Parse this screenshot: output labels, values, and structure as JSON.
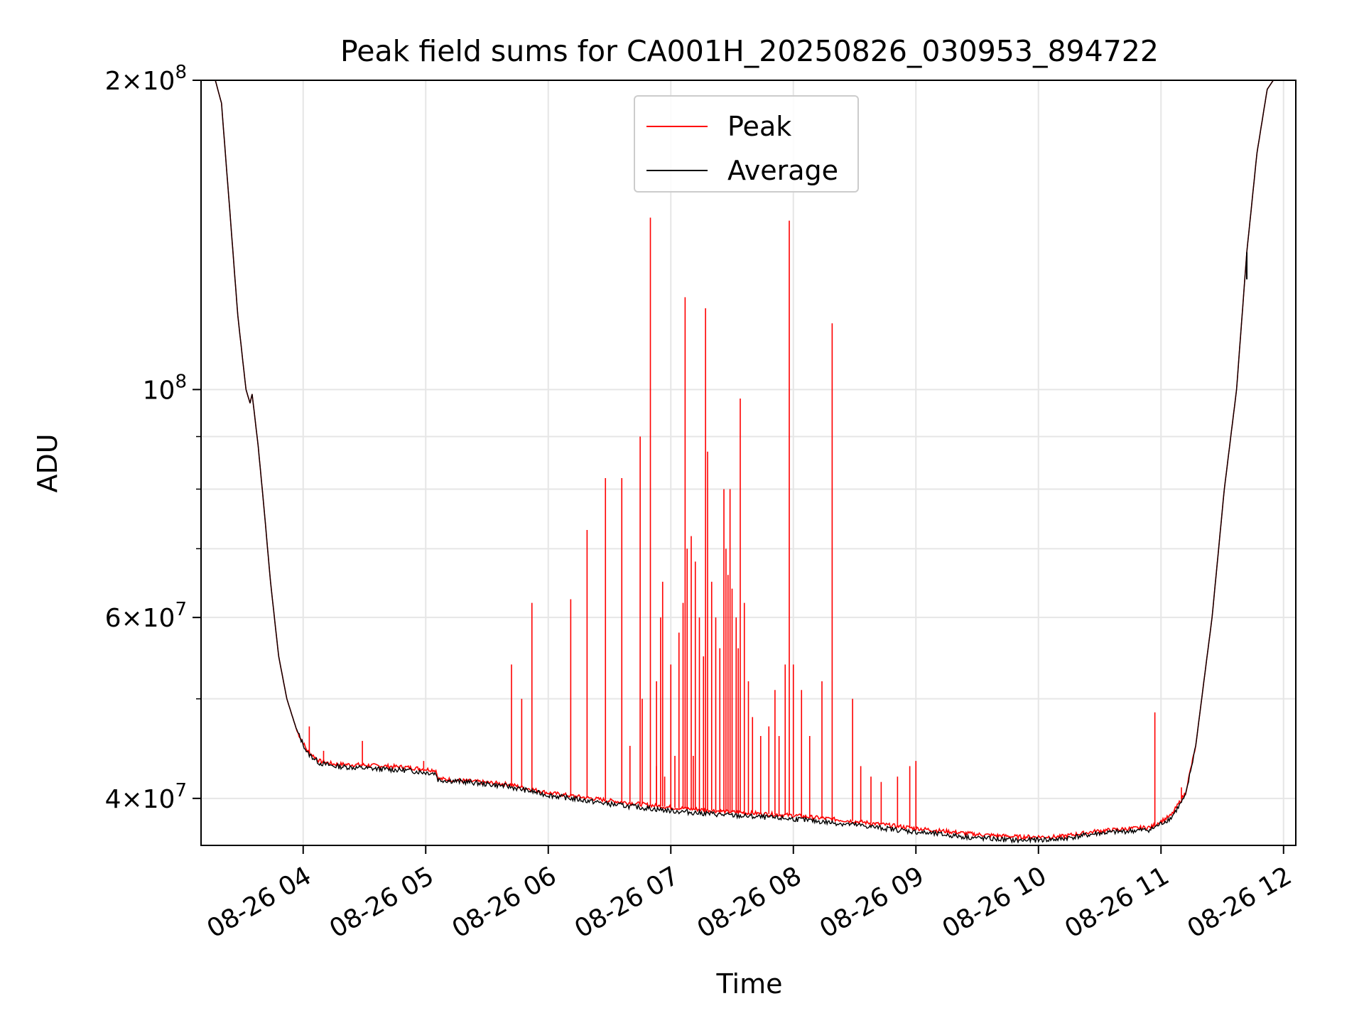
{
  "chart_data": {
    "type": "line",
    "title": "Peak field sums for CA001H_20250826_030953_894722",
    "xlabel": "Time",
    "ylabel": "ADU",
    "yscale": "log",
    "ylim": [
      36000000,
      200000000
    ],
    "xlim": [
      "2025-08-26 03:10",
      "2025-08-26 12:06"
    ],
    "grid": true,
    "legend_position": "upper center",
    "x_ticks": [
      "08-26 04",
      "08-26 05",
      "08-26 06",
      "08-26 07",
      "08-26 08",
      "08-26 09",
      "08-26 10",
      "08-26 11",
      "08-26 12"
    ],
    "y_ticks": [
      {
        "value": 40000000,
        "mantissa": "4",
        "exponent": "7"
      },
      {
        "value": 60000000,
        "mantissa": "6",
        "exponent": "7"
      },
      {
        "value": 100000000,
        "mantissa": "",
        "exponent": "8"
      },
      {
        "value": 200000000,
        "mantissa": "2",
        "exponent": "8"
      }
    ],
    "series": [
      {
        "name": "Peak",
        "color": "#ff0000",
        "points": [
          [
            "03:10",
            200000000
          ],
          [
            "03:17",
            200000000
          ],
          [
            "03:20",
            190000000
          ],
          [
            "03:24",
            150000000
          ],
          [
            "03:28",
            118000000
          ],
          [
            "03:32",
            100000000
          ],
          [
            "03:34",
            97000000
          ],
          [
            "03:35",
            99000000
          ],
          [
            "03:38",
            88000000
          ],
          [
            "03:41",
            76000000
          ],
          [
            "03:44",
            65000000
          ],
          [
            "03:48",
            55000000
          ],
          [
            "03:52",
            50000000
          ],
          [
            "03:57",
            46500000
          ],
          [
            "04:02",
            44500000
          ],
          [
            "04:08",
            43500000
          ],
          [
            "04:15",
            43200000
          ],
          [
            "04:30",
            43100000
          ],
          [
            "04:50",
            42900000
          ],
          [
            "05:05",
            42600000
          ],
          [
            "05:06",
            41800000
          ],
          [
            "05:20",
            41600000
          ],
          [
            "05:40",
            41300000
          ],
          [
            "06:00",
            40500000
          ],
          [
            "06:30",
            39800000
          ],
          [
            "07:00",
            39200000
          ],
          [
            "07:30",
            38800000
          ],
          [
            "08:00",
            38500000
          ],
          [
            "08:30",
            38000000
          ],
          [
            "09:00",
            37400000
          ],
          [
            "09:30",
            36900000
          ],
          [
            "09:50",
            36700000
          ],
          [
            "10:10",
            36700000
          ],
          [
            "10:30",
            37200000
          ],
          [
            "10:55",
            37500000
          ],
          [
            "11:05",
            38500000
          ],
          [
            "11:12",
            40500000
          ],
          [
            "11:17",
            45000000
          ],
          [
            "11:21",
            52000000
          ],
          [
            "11:25",
            60000000
          ],
          [
            "11:31",
            80000000
          ],
          [
            "11:37",
            100000000
          ],
          [
            "11:42",
            136000000
          ],
          [
            "11:47",
            170000000
          ],
          [
            "11:52",
            196000000
          ],
          [
            "11:55",
            200000000
          ],
          [
            "12:06",
            200000000
          ]
        ],
        "spikes": [
          [
            "04:03",
            47000000
          ],
          [
            "04:10",
            44500000
          ],
          [
            "04:29",
            45500000
          ],
          [
            "04:59",
            43500000
          ],
          [
            "05:42",
            54000000
          ],
          [
            "05:47",
            50000000
          ],
          [
            "05:52",
            62000000
          ],
          [
            "06:11",
            62500000
          ],
          [
            "06:19",
            73000000
          ],
          [
            "06:28",
            82000000
          ],
          [
            "06:36",
            82000000
          ],
          [
            "06:45",
            90000000
          ],
          [
            "06:53",
            43000000
          ],
          [
            "06:57",
            42000000
          ],
          [
            "07:02",
            44000000
          ],
          [
            "07:11",
            44000000
          ],
          [
            "06:55",
            60000000
          ],
          [
            "06:53",
            52000000
          ],
          [
            "06:46",
            50000000
          ],
          [
            "06:40",
            45000000
          ],
          [
            "06:50",
            147000000
          ],
          [
            "06:56",
            65000000
          ],
          [
            "07:00",
            54000000
          ],
          [
            "07:04",
            58000000
          ],
          [
            "07:06",
            62000000
          ],
          [
            "07:07",
            123000000
          ],
          [
            "07:08",
            70000000
          ],
          [
            "07:10",
            72000000
          ],
          [
            "07:12",
            68000000
          ],
          [
            "07:14",
            60000000
          ],
          [
            "07:16",
            55000000
          ],
          [
            "07:17",
            120000000
          ],
          [
            "07:18",
            87000000
          ],
          [
            "07:20",
            65000000
          ],
          [
            "07:22",
            60000000
          ],
          [
            "07:24",
            56000000
          ],
          [
            "07:26",
            80000000
          ],
          [
            "07:27",
            70000000
          ],
          [
            "07:28",
            66000000
          ],
          [
            "07:29",
            80000000
          ],
          [
            "07:30",
            64000000
          ],
          [
            "07:32",
            60000000
          ],
          [
            "07:33",
            56000000
          ],
          [
            "07:34",
            98000000
          ],
          [
            "07:36",
            62000000
          ],
          [
            "07:38",
            52000000
          ],
          [
            "07:40",
            48000000
          ],
          [
            "07:44",
            46000000
          ],
          [
            "07:48",
            47000000
          ],
          [
            "07:51",
            51000000
          ],
          [
            "07:53",
            46000000
          ],
          [
            "07:56",
            54000000
          ],
          [
            "07:58",
            146000000
          ],
          [
            "08:00",
            54000000
          ],
          [
            "08:04",
            51000000
          ],
          [
            "08:08",
            46000000
          ],
          [
            "08:14",
            52000000
          ],
          [
            "08:19",
            116000000
          ],
          [
            "08:29",
            50000000
          ],
          [
            "08:33",
            43000000
          ],
          [
            "08:38",
            42000000
          ],
          [
            "08:43",
            41500000
          ],
          [
            "08:51",
            42000000
          ],
          [
            "08:57",
            43000000
          ],
          [
            "09:00",
            43500000
          ],
          [
            "10:57",
            48500000
          ],
          [
            "11:10",
            41000000
          ]
        ]
      },
      {
        "name": "Average",
        "color": "#000000",
        "points": [
          [
            "03:10",
            200000000
          ],
          [
            "03:17",
            200000000
          ],
          [
            "03:20",
            190000000
          ],
          [
            "03:24",
            150000000
          ],
          [
            "03:28",
            118000000
          ],
          [
            "03:32",
            100000000
          ],
          [
            "03:34",
            97000000
          ],
          [
            "03:35",
            99000000
          ],
          [
            "03:38",
            88000000
          ],
          [
            "03:41",
            76000000
          ],
          [
            "03:44",
            65000000
          ],
          [
            "03:48",
            55000000
          ],
          [
            "03:52",
            50000000
          ],
          [
            "03:57",
            46500000
          ],
          [
            "04:02",
            44300000
          ],
          [
            "04:08",
            43300000
          ],
          [
            "04:15",
            43000000
          ],
          [
            "04:30",
            42800000
          ],
          [
            "04:50",
            42600000
          ],
          [
            "05:05",
            42300000
          ],
          [
            "05:06",
            41700000
          ],
          [
            "05:20",
            41500000
          ],
          [
            "05:40",
            41100000
          ],
          [
            "06:00",
            40300000
          ],
          [
            "06:30",
            39500000
          ],
          [
            "07:00",
            38900000
          ],
          [
            "07:30",
            38500000
          ],
          [
            "08:00",
            38200000
          ],
          [
            "08:30",
            37700000
          ],
          [
            "09:00",
            37100000
          ],
          [
            "09:30",
            36600000
          ],
          [
            "09:50",
            36400000
          ],
          [
            "10:10",
            36500000
          ],
          [
            "10:30",
            37000000
          ],
          [
            "10:55",
            37300000
          ],
          [
            "11:05",
            38300000
          ],
          [
            "11:12",
            40200000
          ],
          [
            "11:17",
            45000000
          ],
          [
            "11:21",
            52000000
          ],
          [
            "11:25",
            60000000
          ],
          [
            "11:31",
            80000000
          ],
          [
            "11:37",
            100000000
          ],
          [
            "11:42",
            136000000
          ],
          [
            "11:47",
            170000000
          ],
          [
            "11:52",
            196000000
          ],
          [
            "11:55",
            200000000
          ],
          [
            "12:06",
            200000000
          ]
        ]
      }
    ]
  }
}
